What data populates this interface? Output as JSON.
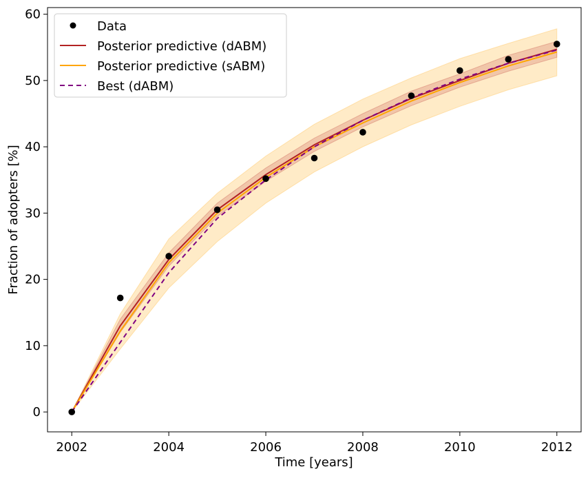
{
  "chart_data": {
    "type": "line",
    "xlabel": "Time [years]",
    "ylabel": "Fraction of adopters [%]",
    "xlim": [
      2001.5,
      2012.5
    ],
    "ylim": [
      -3,
      61
    ],
    "xticks": [
      2002,
      2004,
      2006,
      2008,
      2010,
      2012
    ],
    "yticks": [
      0,
      10,
      20,
      30,
      40,
      50,
      60
    ],
    "x": [
      2002,
      2003,
      2004,
      2005,
      2006,
      2007,
      2008,
      2009,
      2010,
      2011,
      2012
    ],
    "data_points": [
      0.0,
      17.2,
      23.5,
      30.5,
      35.2,
      38.3,
      42.2,
      47.7,
      51.5,
      53.2,
      55.5
    ],
    "series": [
      {
        "name": "Posterior predictive (dABM)",
        "color": "#b22222",
        "values": [
          0.0,
          13.0,
          23.0,
          30.5,
          35.8,
          40.3,
          44.0,
          47.3,
          50.0,
          52.6,
          54.7
        ],
        "lower": [
          0.0,
          12.0,
          22.0,
          29.5,
          34.8,
          39.3,
          43.0,
          46.2,
          49.0,
          51.4,
          53.5
        ],
        "upper": [
          0.0,
          14.0,
          24.0,
          31.5,
          36.8,
          41.3,
          45.0,
          48.4,
          51.0,
          53.8,
          55.9
        ]
      },
      {
        "name": "Posterior predictive (sABM)",
        "color": "#ffa500",
        "values": [
          0.0,
          12.2,
          22.5,
          30.0,
          35.4,
          40.0,
          43.6,
          46.9,
          49.7,
          52.2,
          54.3
        ],
        "lower": [
          0.0,
          9.5,
          18.7,
          25.7,
          31.5,
          36.2,
          40.0,
          43.3,
          46.1,
          48.6,
          50.7
        ],
        "upper": [
          0.0,
          14.8,
          26.1,
          33.0,
          38.6,
          43.4,
          47.2,
          50.4,
          53.3,
          55.6,
          57.8
        ]
      },
      {
        "name": "Best (dABM)",
        "color": "#800080",
        "values": [
          0.0,
          10.5,
          21.0,
          29.2,
          35.0,
          40.0,
          44.0,
          47.4,
          50.2,
          52.6,
          54.6
        ]
      }
    ],
    "legend": {
      "position": "upper-left",
      "entries": [
        "Data",
        "Posterior predictive (dABM)",
        "Posterior predictive (sABM)",
        "Best (dABM)"
      ]
    }
  },
  "colors": {
    "data": "#000000",
    "dabm": "#b22222",
    "sabm": "#ffa500",
    "best": "#800080"
  }
}
